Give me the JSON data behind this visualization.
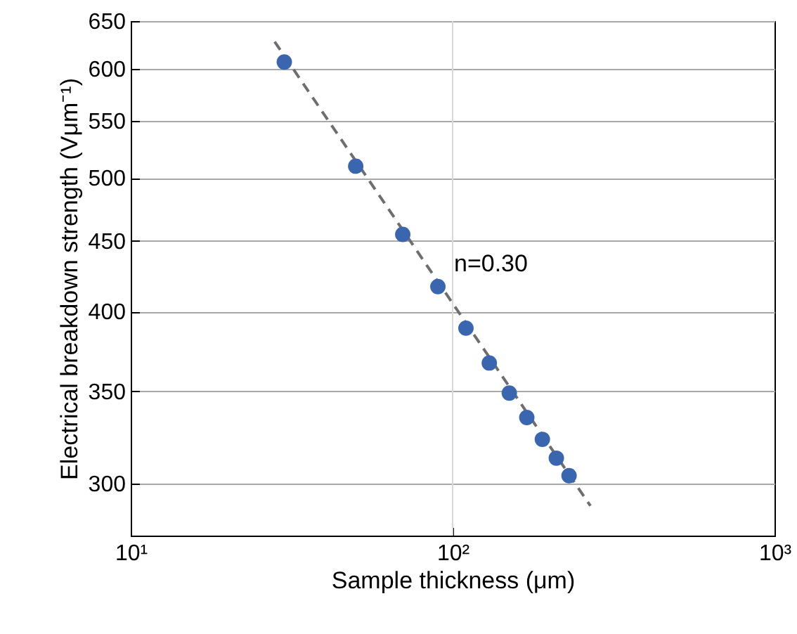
{
  "chart_data": {
    "type": "scatter",
    "xlabel": "Sample thickness (μm)",
    "ylabel": "Electrical breakdown strength (Vμm⁻¹)",
    "log": "xy",
    "xlim": [
      10,
      1000
    ],
    "ylim": [
      275,
      650
    ],
    "xticks": [
      {
        "value": 10,
        "label": "10¹"
      },
      {
        "value": 100,
        "label": "10²"
      },
      {
        "value": 1000,
        "label": "10³"
      }
    ],
    "yticks": [
      300,
      350,
      400,
      450,
      500,
      550,
      600,
      650
    ],
    "grid": "y",
    "marker": "circle",
    "ref_lines": [
      {
        "axis": "x",
        "value": 100,
        "color": "#d9d9d9"
      }
    ],
    "series": [
      {
        "color": "#3a66b0",
        "x": [
          30,
          50,
          70,
          90,
          110,
          130,
          150,
          170,
          190,
          210,
          230
        ],
        "values": [
          607,
          510,
          455,
          417,
          389,
          367,
          349,
          335,
          323,
          313,
          304
        ]
      },
      {
        "type": "line",
        "color": "#6e6e6e",
        "line_style": "dashed",
        "marker": "none",
        "x": [
          28,
          268
        ],
        "values": [
          628,
          289
        ]
      }
    ],
    "annotations": [
      "n=0.30"
    ]
  }
}
